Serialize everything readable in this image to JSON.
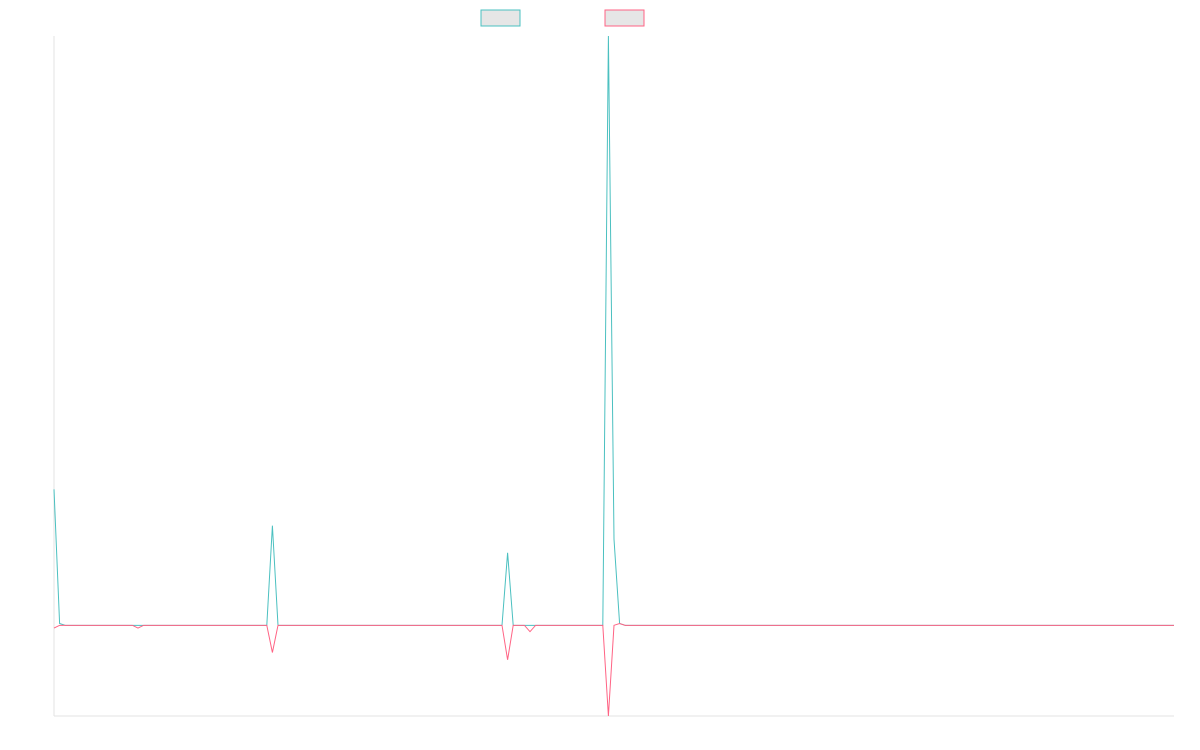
{
  "chart_data": {
    "type": "line",
    "title": "",
    "xlabel": "",
    "ylabel": "",
    "grid": false,
    "legend_placement": "top-center",
    "x": [
      0,
      1,
      2,
      3,
      4,
      5,
      6,
      7,
      8,
      9,
      10,
      11,
      12,
      13,
      14,
      15,
      16,
      17,
      18,
      19,
      20,
      21,
      22,
      23,
      24,
      25,
      26,
      27,
      28,
      29,
      30,
      31,
      32,
      33,
      34,
      35,
      36,
      37,
      38,
      39,
      40,
      41,
      42,
      43,
      44,
      45,
      46,
      47,
      48,
      49,
      50,
      51,
      52,
      53,
      54,
      55,
      56,
      57,
      58,
      59,
      60,
      61,
      62,
      63,
      64,
      65,
      66,
      67,
      68,
      69,
      70,
      71,
      72,
      73,
      74,
      75,
      76,
      77,
      78,
      79,
      80,
      81,
      82,
      83,
      84,
      85,
      86,
      87,
      88,
      89,
      90,
      91,
      92,
      93,
      94,
      95,
      96,
      97,
      98,
      99,
      100,
      101,
      102,
      103,
      104,
      105,
      106,
      107,
      108,
      109,
      110,
      111,
      112,
      113,
      114,
      115,
      116,
      117,
      118,
      119,
      120,
      121,
      122,
      123,
      124,
      125,
      126,
      127,
      128,
      129,
      130,
      131,
      132,
      133,
      134,
      135,
      136,
      137,
      138,
      139,
      140,
      141,
      142,
      143,
      144,
      145,
      146,
      147,
      148,
      149,
      150,
      151,
      152,
      153,
      154,
      155,
      156,
      157,
      158,
      159,
      160,
      161,
      162,
      163,
      164,
      165,
      166,
      167,
      168,
      169,
      170,
      171,
      172,
      173,
      174,
      175,
      176,
      177,
      178,
      179,
      180,
      181,
      182,
      183,
      184,
      185,
      186,
      187,
      188,
      189,
      190,
      191,
      192,
      193,
      194,
      195,
      196,
      197,
      198,
      199,
      200
    ],
    "xlim": [
      0,
      200
    ],
    "ylim": [
      -100,
      650
    ],
    "series": [
      {
        "name": "",
        "color": "#4bc0c0",
        "fill": "#e6e6e6",
        "values": [
          150,
          2,
          0,
          0,
          0,
          0,
          0,
          0,
          0,
          0,
          0,
          0,
          0,
          0,
          0,
          0,
          0,
          0,
          0,
          0,
          0,
          0,
          0,
          0,
          0,
          0,
          0,
          0,
          0,
          0,
          0,
          0,
          0,
          0,
          0,
          0,
          0,
          0,
          0,
          110,
          0,
          0,
          0,
          0,
          0,
          0,
          0,
          0,
          0,
          0,
          0,
          0,
          0,
          0,
          0,
          0,
          0,
          0,
          0,
          0,
          0,
          0,
          0,
          0,
          0,
          0,
          0,
          0,
          0,
          0,
          0,
          0,
          0,
          0,
          0,
          0,
          0,
          0,
          0,
          0,
          0,
          80,
          0,
          0,
          0,
          0,
          0,
          0,
          0,
          0,
          0,
          0,
          0,
          0,
          0,
          0,
          0,
          0,
          0,
          650,
          95,
          2,
          0,
          0,
          0,
          0,
          0,
          0,
          0,
          0,
          0,
          0,
          0,
          0,
          0,
          0,
          0,
          0,
          0,
          0,
          0,
          0,
          0,
          0,
          0,
          0,
          0,
          0,
          0,
          0,
          0,
          0,
          0,
          0,
          0,
          0,
          0,
          0,
          0,
          0,
          0,
          0,
          0,
          0,
          0,
          0,
          0,
          0,
          0,
          0,
          0,
          0,
          0,
          0,
          0,
          0,
          0,
          0,
          0,
          0,
          0,
          0,
          0,
          0,
          0,
          0,
          0,
          0,
          0,
          0,
          0,
          0,
          0,
          0,
          0,
          0,
          0,
          0,
          0,
          0,
          0,
          0,
          0,
          0,
          0,
          0,
          0,
          0,
          0,
          0,
          0,
          0,
          0,
          0,
          0,
          0,
          0,
          0,
          0,
          0,
          0
        ]
      },
      {
        "name": "",
        "color": "#ff6384",
        "fill": "#e6e6e6",
        "values": [
          -3,
          0,
          0,
          0,
          0,
          0,
          0,
          0,
          0,
          0,
          0,
          0,
          0,
          0,
          0,
          -3,
          0,
          0,
          0,
          0,
          0,
          0,
          0,
          0,
          0,
          0,
          0,
          0,
          0,
          0,
          0,
          0,
          0,
          0,
          0,
          0,
          0,
          0,
          0,
          -30,
          0,
          0,
          0,
          0,
          0,
          0,
          0,
          0,
          0,
          0,
          0,
          0,
          0,
          0,
          0,
          0,
          0,
          0,
          0,
          0,
          0,
          0,
          0,
          0,
          0,
          0,
          0,
          0,
          0,
          0,
          0,
          0,
          0,
          0,
          0,
          0,
          0,
          0,
          0,
          0,
          0,
          -38,
          0,
          0,
          0,
          -7,
          0,
          0,
          0,
          0,
          0,
          0,
          0,
          0,
          0,
          0,
          0,
          0,
          0,
          -100,
          0,
          2,
          0,
          0,
          0,
          0,
          0,
          0,
          0,
          0,
          0,
          0,
          0,
          0,
          0,
          0,
          0,
          0,
          0,
          0,
          0,
          0,
          0,
          0,
          0,
          0,
          0,
          0,
          0,
          0,
          0,
          0,
          0,
          0,
          0,
          0,
          0,
          0,
          0,
          0,
          0,
          0,
          0,
          0,
          0,
          0,
          0,
          0,
          0,
          0,
          0,
          0,
          0,
          0,
          0,
          0,
          0,
          0,
          0,
          0,
          0,
          0,
          0,
          0,
          0,
          0,
          0,
          0,
          0,
          0,
          0,
          0,
          0,
          0,
          0,
          0,
          0,
          0,
          0,
          0,
          0,
          0,
          0,
          0,
          0,
          0,
          0,
          0,
          0,
          0,
          0,
          0,
          0,
          0,
          0,
          0,
          0,
          0,
          0,
          0,
          0
        ]
      }
    ]
  }
}
